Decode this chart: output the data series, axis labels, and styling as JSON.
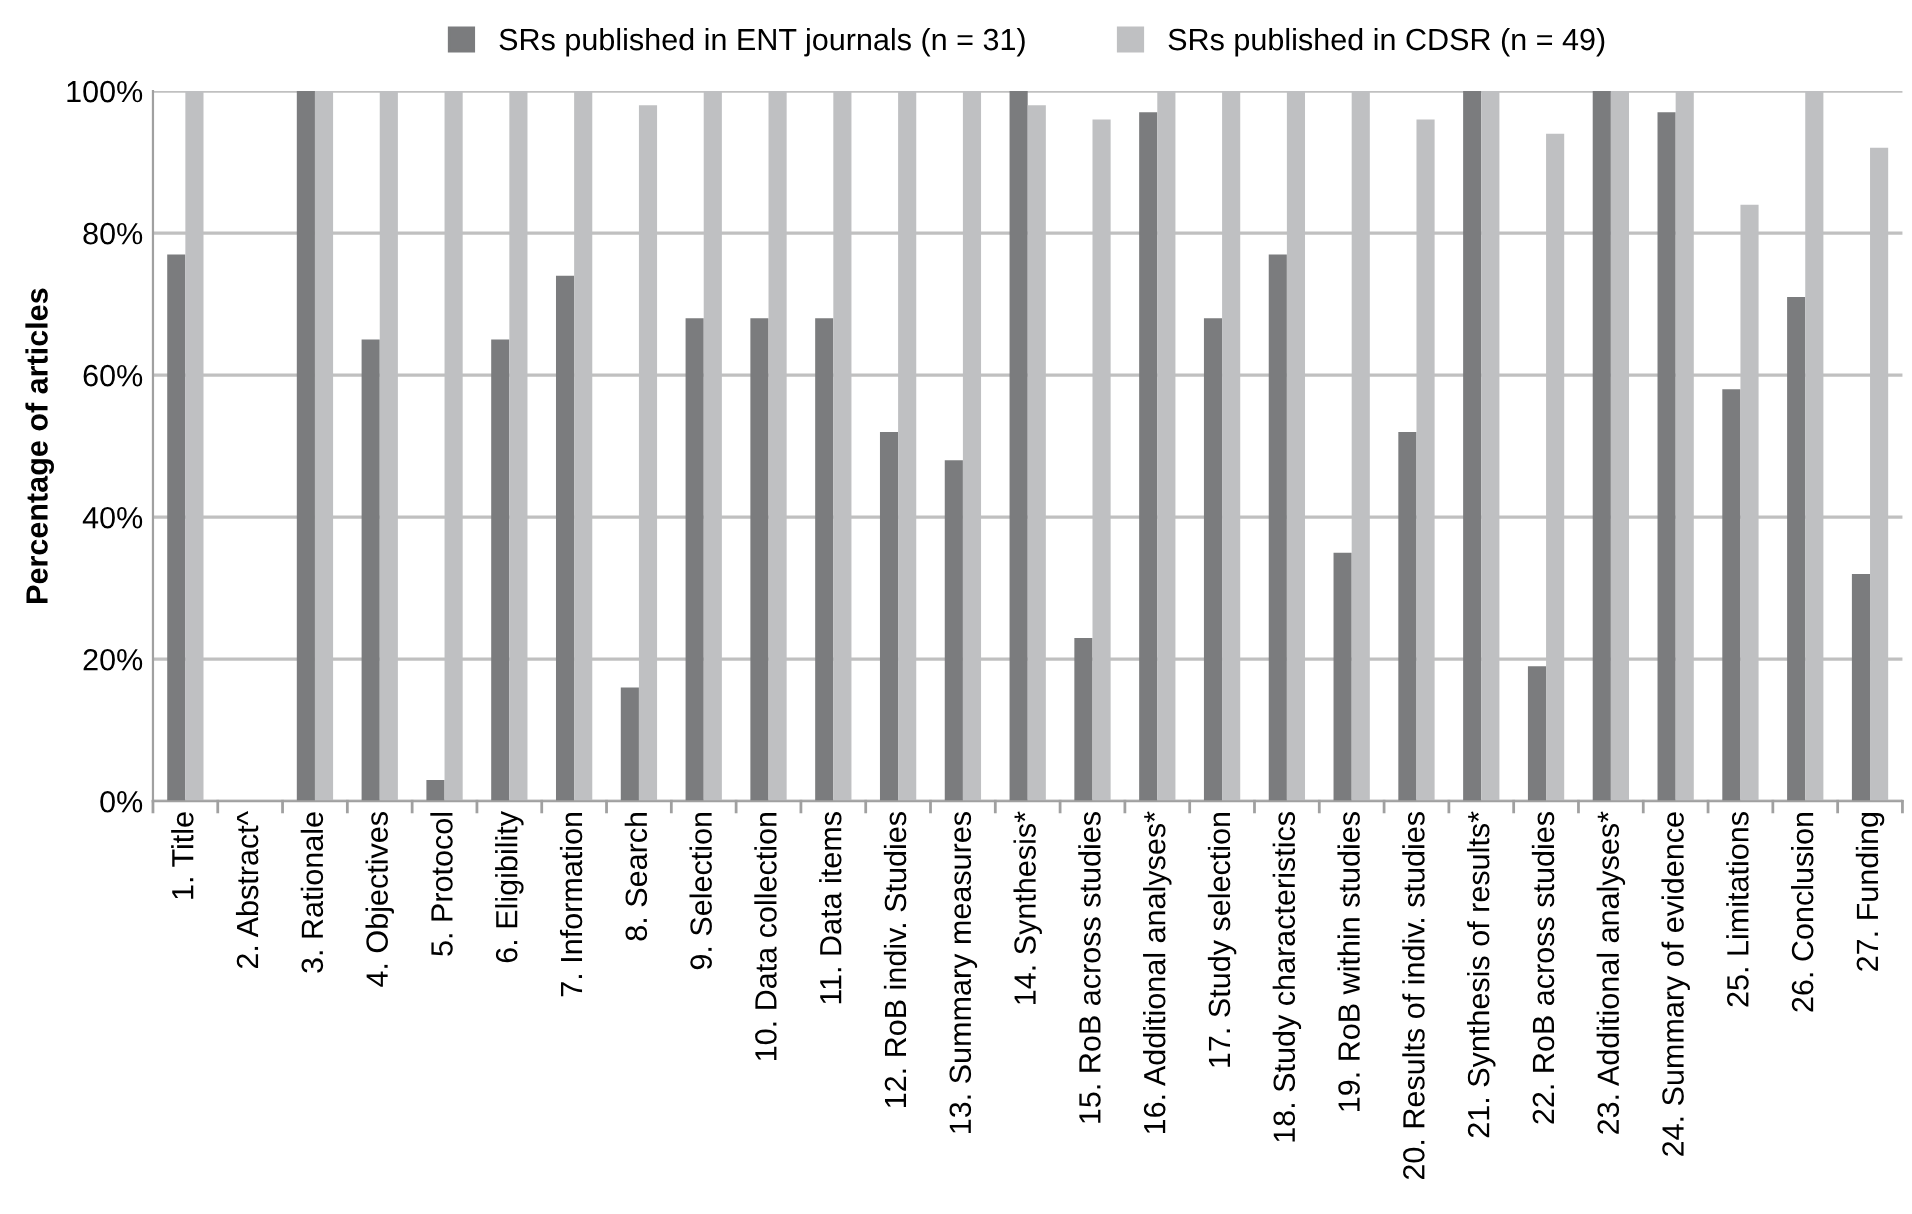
{
  "chart_data": {
    "type": "bar",
    "ylabel": "Percentage of articles",
    "categories": [
      "1. Title",
      "2. Abstract^",
      "3. Rationale",
      "4. Objectives",
      "5. Protocol",
      "6. Eligibility",
      "7. Information",
      "8. Search",
      "9. Selection",
      "10. Data collection",
      "11. Data items",
      "12. RoB indiv. Studies",
      "13. Summary measures",
      "14. Synthesis*",
      "15. RoB across studies",
      "16. Additional analyses*",
      "17. Study selection",
      "18. Study characteristics",
      "19. RoB within studies",
      "20. Results of indiv. studies",
      "21. Synthesis of results*",
      "22. RoB across studies",
      "23. Additional analyses*",
      "24. Summary of evidence",
      "25. Limitations",
      "26. Conclusion",
      "27. Funding"
    ],
    "series": [
      {
        "name": "SRs published in ENT journals (n = 31)",
        "color": "#7b7c7e",
        "values": [
          77,
          0,
          100,
          65,
          3,
          65,
          74,
          16,
          68,
          68,
          68,
          52,
          48,
          100,
          23,
          97,
          68,
          77,
          35,
          52,
          100,
          19,
          100,
          97,
          58,
          71,
          32
        ]
      },
      {
        "name": "SRs published in CDSR (n = 49)",
        "color": "#bfc0c2",
        "values": [
          100,
          0,
          100,
          100,
          100,
          100,
          100,
          98,
          100,
          100,
          100,
          100,
          100,
          98,
          96,
          100,
          100,
          100,
          100,
          96,
          100,
          94,
          100,
          100,
          84,
          100,
          92
        ]
      }
    ],
    "ylim": [
      0,
      100
    ],
    "yticks": [
      {
        "value": 0,
        "label": "0%"
      },
      {
        "value": 20,
        "label": "20%"
      },
      {
        "value": 40,
        "label": "40%"
      },
      {
        "value": 60,
        "label": "60%"
      },
      {
        "value": 80,
        "label": "80%"
      },
      {
        "value": 100,
        "label": "100%"
      }
    ],
    "grid": "y",
    "legend": "top"
  }
}
